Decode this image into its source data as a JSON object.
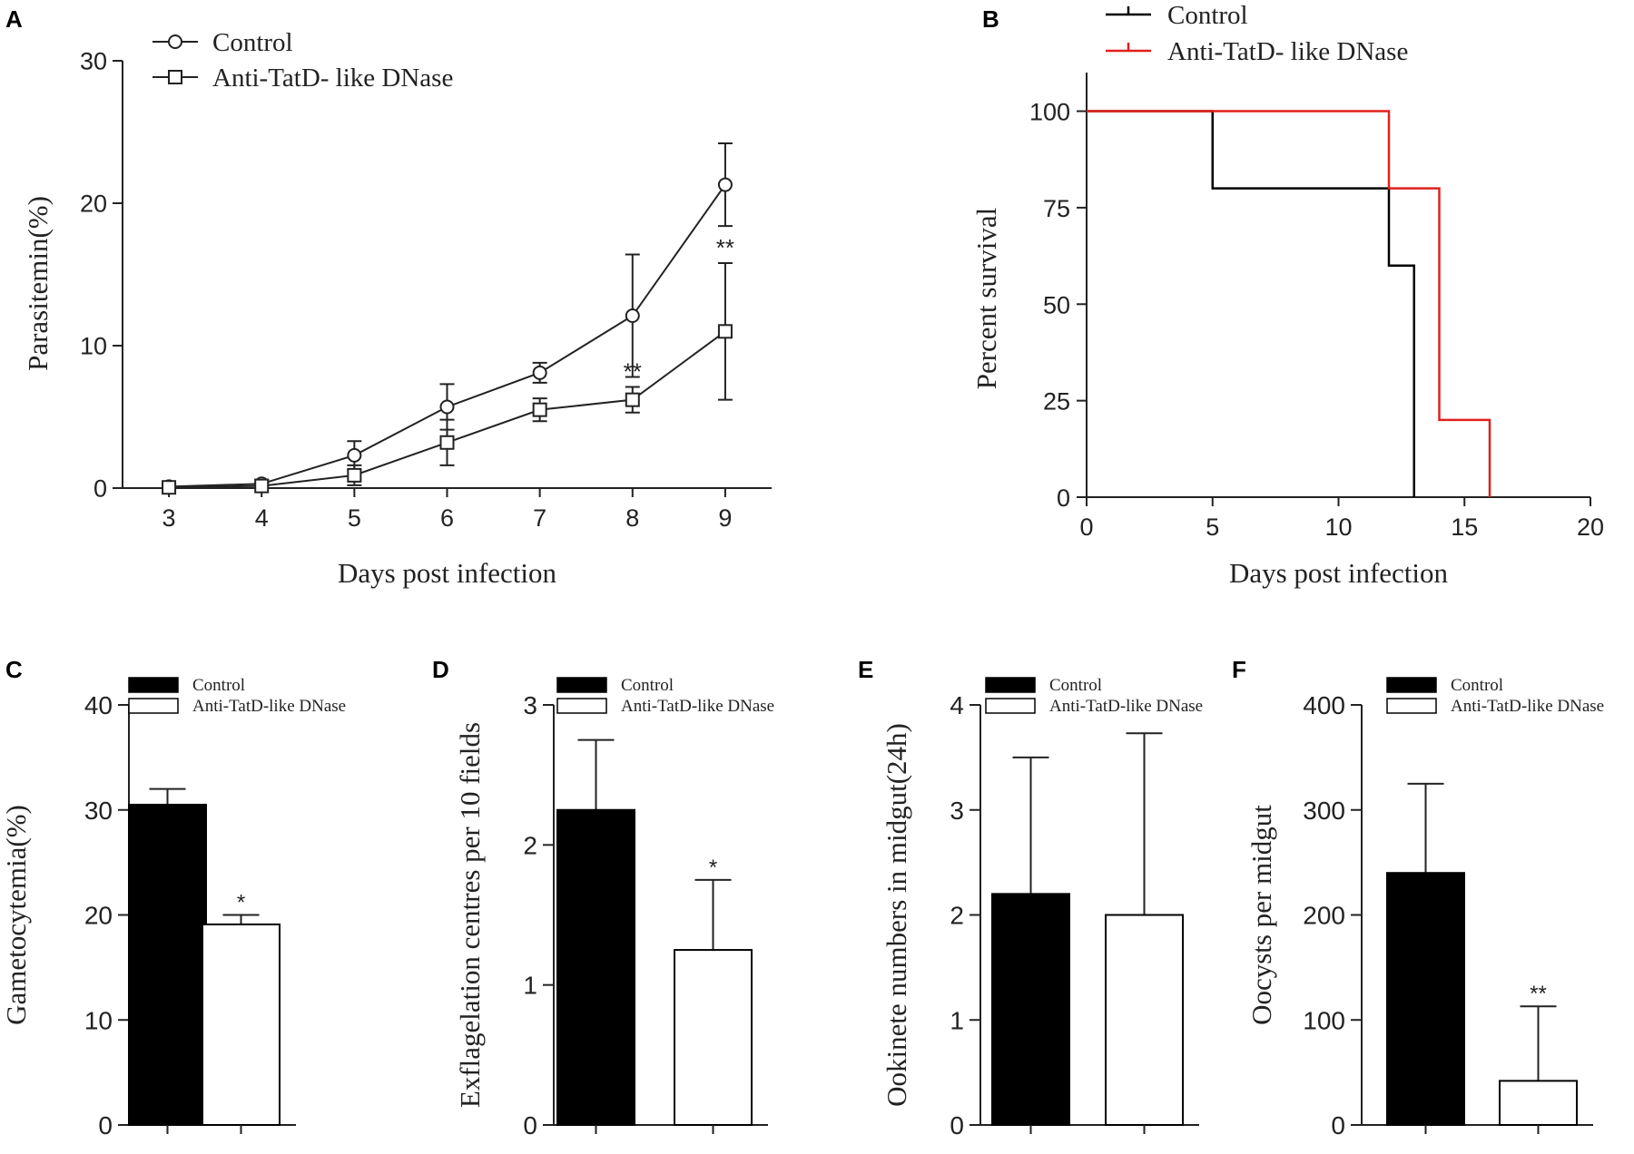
{
  "chart_data": [
    {
      "panel": "A",
      "type": "line",
      "xlabel": "Days post infection",
      "ylabel": "Parasitemin(%)",
      "x": [
        3,
        4,
        5,
        6,
        7,
        8,
        9
      ],
      "xlim": [
        2.5,
        9.5
      ],
      "ylim": [
        0,
        30
      ],
      "yticks": [
        0,
        10,
        20,
        30
      ],
      "series": [
        {
          "name": "Control",
          "marker": "circle",
          "values": [
            0.1,
            0.3,
            2.3,
            5.7,
            8.1,
            12.1,
            21.3
          ],
          "errors": [
            0.2,
            0.3,
            1.0,
            1.6,
            0.7,
            4.3,
            2.9
          ]
        },
        {
          "name": "Anti-TatD- like DNase",
          "marker": "square",
          "values": [
            0.05,
            0.15,
            0.9,
            3.2,
            5.5,
            6.2,
            11.0
          ],
          "errors": [
            0.2,
            0.2,
            0.7,
            1.6,
            0.8,
            0.9,
            4.8
          ]
        }
      ],
      "annotations": [
        {
          "x": 8,
          "y": 7.6,
          "text": "**"
        },
        {
          "x": 9,
          "y": 16.3,
          "text": "**"
        }
      ]
    },
    {
      "panel": "B",
      "type": "line",
      "xlabel": "Days post infection",
      "ylabel": "Percent survival",
      "xlim": [
        0,
        20
      ],
      "ylim": [
        0,
        110
      ],
      "xticks": [
        0,
        5,
        10,
        15,
        20
      ],
      "yticks": [
        0,
        25,
        50,
        75,
        100
      ],
      "series": [
        {
          "name": "Control",
          "color": "#000000",
          "steps": [
            [
              0,
              100
            ],
            [
              5,
              100
            ],
            [
              5,
              80
            ],
            [
              12,
              80
            ],
            [
              12,
              60
            ],
            [
              13,
              60
            ],
            [
              13,
              0
            ]
          ]
        },
        {
          "name": "Anti-TatD- like DNase",
          "color": "#e0201c",
          "steps": [
            [
              0,
              100
            ],
            [
              12,
              100
            ],
            [
              12,
              80
            ],
            [
              14,
              80
            ],
            [
              14,
              20
            ],
            [
              16,
              20
            ],
            [
              16,
              0
            ]
          ]
        }
      ]
    },
    {
      "panel": "C",
      "type": "bar",
      "ylabel": "Gametocytemia(%)",
      "ylim": [
        0,
        40
      ],
      "yticks": [
        0,
        10,
        20,
        30,
        40
      ],
      "legend": [
        "Control",
        "Anti-TatD-like DNase"
      ],
      "categories": [
        "Control",
        "Anti-TatD-like DNase"
      ],
      "values": [
        30.5,
        19.1
      ],
      "errors": [
        1.5,
        0.9
      ],
      "annotations": [
        "",
        "*"
      ]
    },
    {
      "panel": "D",
      "type": "bar",
      "ylabel": "Exflagelation centres per 10 fields",
      "ylim": [
        0,
        3
      ],
      "yticks": [
        0,
        1,
        2,
        3
      ],
      "legend": [
        "Control",
        "Anti-TatD-like DNase"
      ],
      "categories": [
        "Control",
        "Anti-TatD-like DNase"
      ],
      "values": [
        2.25,
        1.25
      ],
      "errors": [
        0.5,
        0.5
      ],
      "annotations": [
        "",
        "*"
      ]
    },
    {
      "panel": "E",
      "type": "bar",
      "ylabel": "Ookinete numbers in midgut(24h)",
      "ylim": [
        0,
        4
      ],
      "yticks": [
        0,
        1,
        2,
        3,
        4
      ],
      "legend": [
        "Control",
        "Anti-TatD-like DNase"
      ],
      "categories": [
        "Control",
        "Anti-TatD-like DNase"
      ],
      "values": [
        2.2,
        2.0
      ],
      "errors": [
        1.3,
        1.73
      ],
      "annotations": [
        "",
        ""
      ]
    },
    {
      "panel": "F",
      "type": "bar",
      "ylabel": "Oocysts per midgut",
      "ylim": [
        0,
        400
      ],
      "yticks": [
        0,
        100,
        200,
        300,
        400
      ],
      "legend": [
        "Control",
        "Anti-TatD-like DNase"
      ],
      "categories": [
        "Control",
        "Anti-TatD-like DNase"
      ],
      "values": [
        240,
        42
      ],
      "errors": [
        85,
        71
      ],
      "annotations": [
        "",
        "**"
      ]
    }
  ]
}
